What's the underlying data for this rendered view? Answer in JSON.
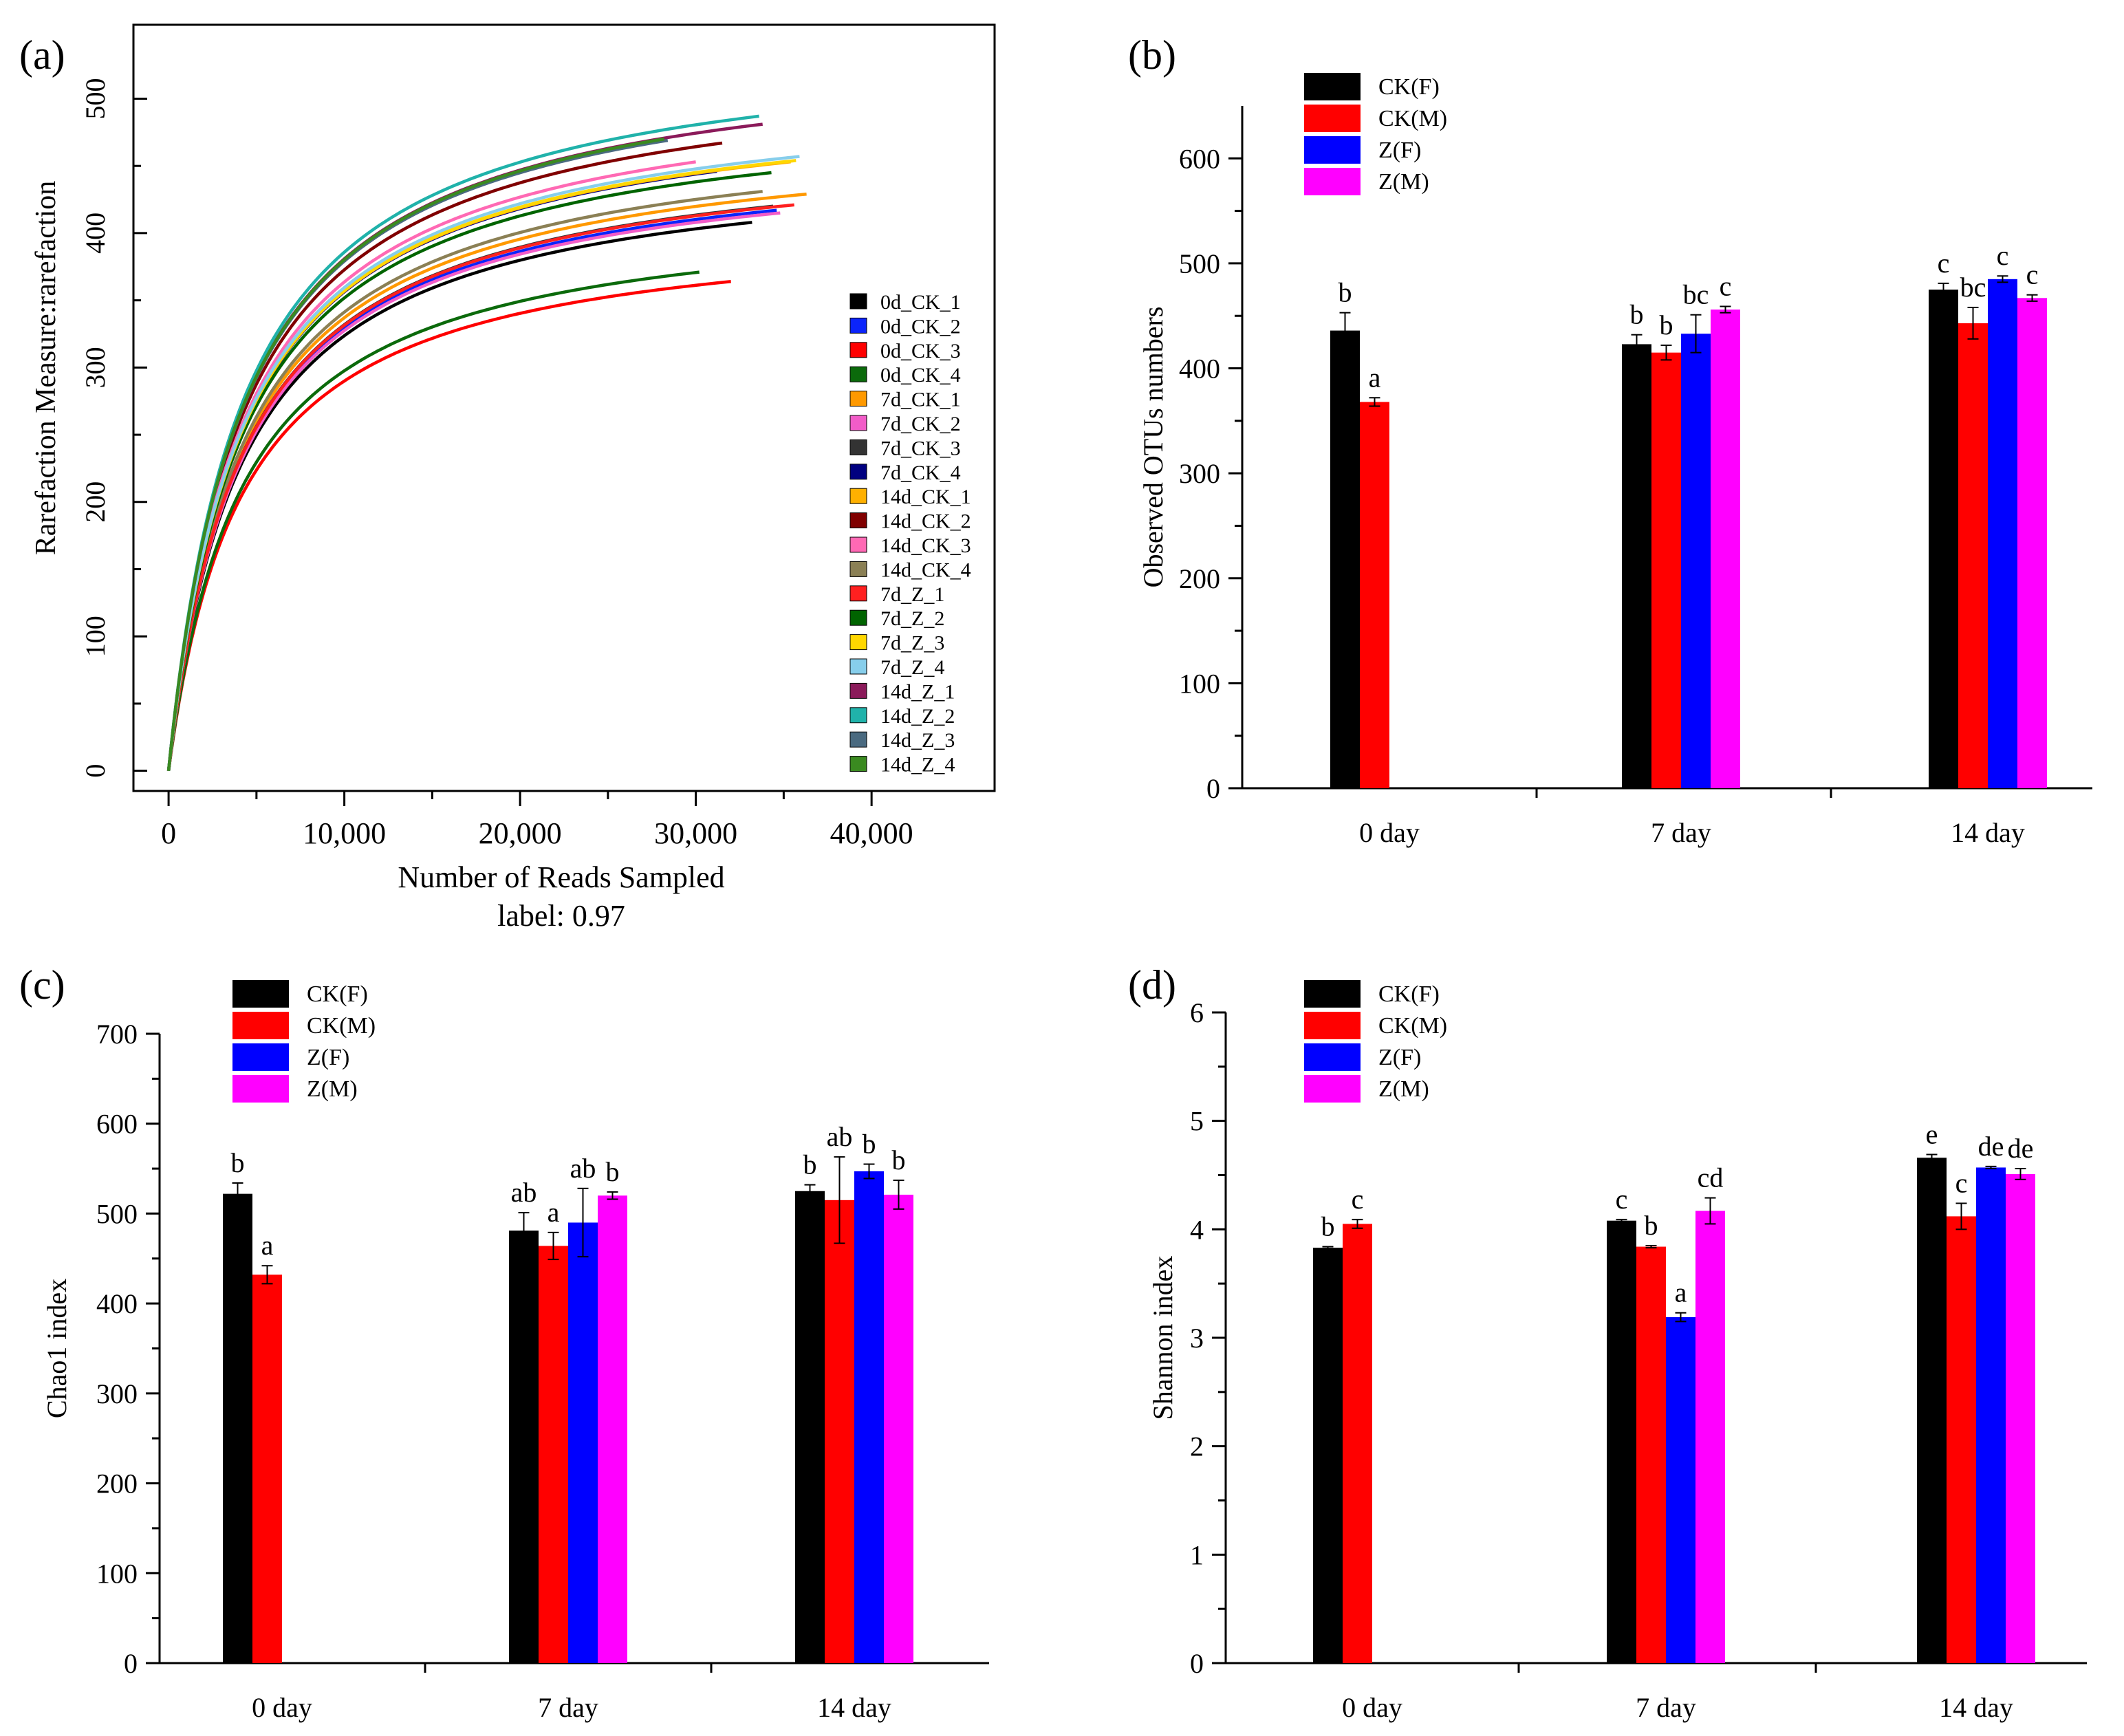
{
  "chart_data": [
    {
      "panel": "(a)",
      "type": "line",
      "title": "",
      "xlabel": "Number of Reads Sampled",
      "xlabel2": "label: 0.97",
      "ylabel": "Rarefaction Measure:rarefaction",
      "xlim": [
        -2000,
        47000
      ],
      "ylim": [
        -15,
        555
      ],
      "xticks": [
        0,
        10000,
        20000,
        30000,
        40000
      ],
      "xtick_labels": [
        "0",
        "10,000",
        "20,000",
        "30,000",
        "40,000"
      ],
      "yticks": [
        0,
        100,
        200,
        300,
        400,
        500
      ],
      "ytick_labels": [
        "0",
        "100",
        "200",
        "300",
        "400",
        "500"
      ],
      "legend_position": "right",
      "series": [
        {
          "name": "0d_CK_1",
          "color": "#000000",
          "x_max": 33200,
          "y_end": 408
        },
        {
          "name": "0d_CK_2",
          "color": "#0b24fb",
          "x_max": 34600,
          "y_end": 417
        },
        {
          "name": "0d_CK_3",
          "color": "#fe0000",
          "x_max": 32000,
          "y_end": 364
        },
        {
          "name": "0d_CK_4",
          "color": "#0b6a0b",
          "x_max": 30200,
          "y_end": 371
        },
        {
          "name": "7d_CK_1",
          "color": "#ff9900",
          "x_max": 36300,
          "y_end": 429
        },
        {
          "name": "7d_CK_2",
          "color": "#f25cc8",
          "x_max": 34800,
          "y_end": 415
        },
        {
          "name": "7d_CK_3",
          "color": "#333333",
          "x_max": 34400,
          "y_end": 420
        },
        {
          "name": "7d_CK_4",
          "color": "#000080",
          "x_max": 31200,
          "y_end": 446
        },
        {
          "name": "14d_CK_1",
          "color": "#ffb000",
          "x_max": 35400,
          "y_end": 453
        },
        {
          "name": "14d_CK_2",
          "color": "#800000",
          "x_max": 31500,
          "y_end": 467
        },
        {
          "name": "14d_CK_3",
          "color": "#ff69b4",
          "x_max": 30000,
          "y_end": 453
        },
        {
          "name": "14d_CK_4",
          "color": "#8b8055",
          "x_max": 33800,
          "y_end": 431
        },
        {
          "name": "7d_Z_1",
          "color": "#ff2020",
          "x_max": 35600,
          "y_end": 421
        },
        {
          "name": "7d_Z_2",
          "color": "#006400",
          "x_max": 34300,
          "y_end": 445
        },
        {
          "name": "7d_Z_3",
          "color": "#ffd700",
          "x_max": 35700,
          "y_end": 454
        },
        {
          "name": "7d_Z_4",
          "color": "#87ceeb",
          "x_max": 35900,
          "y_end": 457
        },
        {
          "name": "14d_Z_1",
          "color": "#8b1a5a",
          "x_max": 33800,
          "y_end": 481
        },
        {
          "name": "14d_Z_2",
          "color": "#20b2aa",
          "x_max": 33600,
          "y_end": 487
        },
        {
          "name": "14d_Z_3",
          "color": "#4a6a80",
          "x_max": 28400,
          "y_end": 469
        },
        {
          "name": "14d_Z_4",
          "color": "#3a8a20",
          "x_max": 28200,
          "y_end": 470
        }
      ]
    },
    {
      "panel": "(b)",
      "type": "bar",
      "ylabel": "Observed OTUs numbers",
      "xlabel": "",
      "ylim": [
        0,
        650
      ],
      "yticks": [
        0,
        100,
        200,
        300,
        400,
        500,
        600
      ],
      "categories": [
        "0 day",
        "7 day",
        "14 day"
      ],
      "legend_position": "top-left",
      "series": [
        {
          "name": "CK(F)",
          "color": "#000000",
          "values": [
            436,
            423,
            475
          ],
          "errors": [
            17,
            9,
            6
          ],
          "letters": [
            "b",
            "b",
            "c"
          ]
        },
        {
          "name": "CK(M)",
          "color": "#ff0000",
          "values": [
            368,
            415,
            443
          ],
          "errors": [
            4,
            7,
            15
          ],
          "letters": [
            "a",
            "b",
            "bc"
          ]
        },
        {
          "name": "Z(F)",
          "color": "#0000ff",
          "values": [
            null,
            433,
            485
          ],
          "errors": [
            null,
            18,
            3
          ],
          "letters": [
            "",
            "bc",
            "c"
          ]
        },
        {
          "name": "Z(M)",
          "color": "#ff00ff",
          "values": [
            null,
            456,
            467
          ],
          "errors": [
            null,
            3,
            3
          ],
          "letters": [
            "",
            "c",
            "c"
          ]
        }
      ]
    },
    {
      "panel": "(c)",
      "type": "bar",
      "ylabel": "Chao1 index",
      "xlabel": "",
      "ylim": [
        0,
        700
      ],
      "yticks": [
        0,
        100,
        200,
        300,
        400,
        500,
        600,
        700
      ],
      "categories": [
        "0 day",
        "7 day",
        "14 day"
      ],
      "legend_position": "top-left",
      "series": [
        {
          "name": "CK(F)",
          "color": "#000000",
          "values": [
            522,
            481,
            525
          ],
          "errors": [
            12,
            20,
            7
          ],
          "letters": [
            "b",
            "ab",
            "b"
          ]
        },
        {
          "name": "CK(M)",
          "color": "#ff0000",
          "values": [
            432,
            464,
            515
          ],
          "errors": [
            10,
            15,
            48
          ],
          "letters": [
            "a",
            "a",
            "ab"
          ]
        },
        {
          "name": "Z(F)",
          "color": "#0000ff",
          "values": [
            null,
            490,
            547
          ],
          "errors": [
            null,
            38,
            8
          ],
          "letters": [
            "",
            "ab",
            "b"
          ]
        },
        {
          "name": "Z(M)",
          "color": "#ff00ff",
          "values": [
            null,
            520,
            521
          ],
          "errors": [
            null,
            4,
            16
          ],
          "letters": [
            "",
            "b",
            "b"
          ]
        }
      ]
    },
    {
      "panel": "(d)",
      "type": "bar",
      "ylabel": "Shannon index",
      "xlabel": "",
      "ylim": [
        0,
        6
      ],
      "yticks": [
        0,
        1,
        2,
        3,
        4,
        5,
        6
      ],
      "categories": [
        "0 day",
        "7 day",
        "14 day"
      ],
      "legend_position": "top-left",
      "series": [
        {
          "name": "CK(F)",
          "color": "#000000",
          "values": [
            3.83,
            4.08,
            4.66
          ],
          "errors": [
            0.01,
            0.01,
            0.03
          ],
          "letters": [
            "b",
            "c",
            "e"
          ]
        },
        {
          "name": "CK(M)",
          "color": "#ff0000",
          "values": [
            4.05,
            3.84,
            4.12
          ],
          "errors": [
            0.04,
            0.01,
            0.12
          ],
          "letters": [
            "c",
            "b",
            "c"
          ]
        },
        {
          "name": "Z(F)",
          "color": "#0000ff",
          "values": [
            null,
            3.19,
            4.57
          ],
          "errors": [
            null,
            0.04,
            0.01
          ],
          "letters": [
            "",
            "a",
            "de"
          ]
        },
        {
          "name": "Z(M)",
          "color": "#ff00ff",
          "values": [
            null,
            4.17,
            4.51
          ],
          "errors": [
            null,
            0.12,
            0.05
          ],
          "letters": [
            "",
            "cd",
            "de"
          ]
        }
      ]
    }
  ]
}
